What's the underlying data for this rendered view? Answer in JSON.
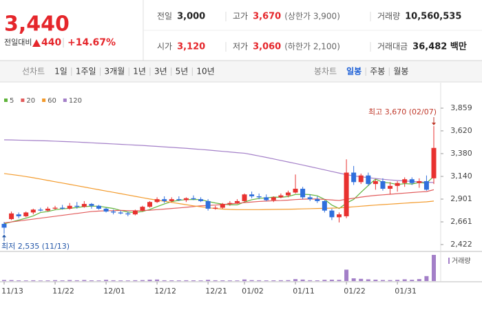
{
  "header": {
    "price": "3,440",
    "change_label": "전일대비",
    "change": "440",
    "change_rate": "+14.67%",
    "stats": [
      {
        "label": "전일",
        "value": "3,000"
      },
      {
        "label": "고가",
        "value": "3,670",
        "note": "(상한가 3,900)"
      },
      {
        "label": "거래량",
        "value": "10,560,535"
      },
      {
        "label": "시가",
        "value": "3,120"
      },
      {
        "label": "저가",
        "value": "3,060",
        "note": "(하한가 2,100)"
      },
      {
        "label": "거래대금",
        "value": "36,482 백만"
      }
    ]
  },
  "toolbar": {
    "line_chart": "선차트",
    "line_periods": [
      "1일",
      "1주일",
      "3개월",
      "1년",
      "3년",
      "5년",
      "10년"
    ],
    "candle_chart": "봉차트",
    "candle_periods": [
      "일봉",
      "주봉",
      "월봉"
    ],
    "selected": "일봉"
  },
  "chart_data": {
    "type": "candlestick",
    "up_color": "#e8312f",
    "down_color": "#2f6fdc",
    "categories": [
      "11/13",
      null,
      null,
      null,
      null,
      null,
      null,
      "11/22",
      null,
      null,
      null,
      null,
      null,
      null,
      "12/01",
      null,
      null,
      null,
      null,
      null,
      null,
      "12/12",
      null,
      null,
      null,
      null,
      null,
      null,
      "12/21",
      null,
      null,
      null,
      null,
      "01/02",
      null,
      null,
      null,
      null,
      null,
      null,
      "01/11",
      null,
      null,
      null,
      null,
      null,
      null,
      "01/22",
      null,
      null,
      null,
      null,
      null,
      null,
      "01/31",
      null,
      null,
      null,
      null,
      null
    ],
    "open": [
      2640,
      2690,
      2740,
      2720,
      2760,
      2790,
      2780,
      2800,
      2810,
      2800,
      2830,
      2820,
      2850,
      2830,
      2800,
      2770,
      2760,
      2750,
      2740,
      2780,
      2820,
      2870,
      2900,
      2880,
      2900,
      2890,
      2910,
      2900,
      2880,
      2800,
      2810,
      2850,
      2860,
      2880,
      2950,
      2930,
      2920,
      2890,
      2920,
      2940,
      2970,
      3010,
      2920,
      2900,
      2880,
      2780,
      2710,
      2720,
      3180,
      3080,
      3150,
      3060,
      3090,
      3010,
      3040,
      3070,
      3110,
      3070,
      3090,
      3120
    ],
    "high": [
      2660,
      2770,
      2760,
      2770,
      2800,
      2810,
      2820,
      2830,
      2840,
      2860,
      2870,
      2880,
      2860,
      2840,
      2810,
      2790,
      2780,
      2770,
      2790,
      2830,
      2880,
      2920,
      2930,
      2920,
      2930,
      2920,
      2940,
      2920,
      2900,
      2830,
      2860,
      2880,
      2900,
      2960,
      2980,
      2960,
      2950,
      2930,
      2960,
      2990,
      3160,
      3030,
      2950,
      2930,
      2890,
      2800,
      2760,
      3320,
      3250,
      3170,
      3180,
      3110,
      3120,
      3080,
      3090,
      3130,
      3130,
      3120,
      3150,
      3670
    ],
    "low": [
      2535,
      2680,
      2700,
      2710,
      2740,
      2770,
      2770,
      2790,
      2790,
      2790,
      2800,
      2810,
      2800,
      2790,
      2760,
      2740,
      2740,
      2720,
      2730,
      2770,
      2810,
      2860,
      2860,
      2870,
      2880,
      2870,
      2890,
      2870,
      2780,
      2790,
      2800,
      2830,
      2850,
      2870,
      2910,
      2900,
      2880,
      2870,
      2910,
      2920,
      2960,
      2900,
      2880,
      2860,
      2760,
      2680,
      2655,
      2700,
      3050,
      3060,
      3040,
      3000,
      2990,
      2950,
      2980,
      3030,
      3050,
      3020,
      2990,
      3060
    ],
    "close": [
      2600,
      2750,
      2720,
      2760,
      2790,
      2780,
      2800,
      2810,
      2800,
      2830,
      2820,
      2850,
      2830,
      2800,
      2770,
      2760,
      2750,
      2740,
      2780,
      2820,
      2870,
      2900,
      2880,
      2900,
      2890,
      2910,
      2900,
      2880,
      2800,
      2810,
      2850,
      2860,
      2880,
      2950,
      2930,
      2920,
      2890,
      2920,
      2940,
      2970,
      3010,
      2920,
      2900,
      2880,
      2780,
      2710,
      2740,
      3180,
      3080,
      3150,
      3060,
      3090,
      3010,
      3040,
      3070,
      3110,
      3070,
      3090,
      3000,
      3440
    ],
    "series": [
      {
        "name": "5",
        "color": "#5fb33a",
        "values": [
          2640,
          2660,
          2680,
          2700,
          2724,
          2760,
          2770,
          2788,
          2798,
          2804,
          2812,
          2822,
          2826,
          2826,
          2814,
          2802,
          2782,
          2764,
          2760,
          2770,
          2792,
          2822,
          2850,
          2874,
          2888,
          2896,
          2896,
          2896,
          2876,
          2860,
          2848,
          2840,
          2840,
          2870,
          2894,
          2908,
          2914,
          2922,
          2920,
          2928,
          2950,
          2952,
          2948,
          2936,
          2898,
          2838,
          2802,
          2858,
          2898,
          2972,
          3044,
          3112,
          3078,
          3070,
          3054,
          3064,
          3060,
          3076,
          3068,
          3142
        ]
      },
      {
        "name": "20",
        "color": "#e25b5b",
        "values": [
          2650,
          2660,
          2670,
          2680,
          2690,
          2700,
          2710,
          2720,
          2730,
          2740,
          2750,
          2760,
          2770,
          2775,
          2778,
          2780,
          2782,
          2780,
          2778,
          2780,
          2784,
          2790,
          2796,
          2802,
          2808,
          2815,
          2822,
          2830,
          2834,
          2838,
          2844,
          2850,
          2856,
          2864,
          2870,
          2876,
          2880,
          2884,
          2886,
          2890,
          2896,
          2900,
          2902,
          2902,
          2898,
          2892,
          2886,
          2900,
          2910,
          2922,
          2932,
          2940,
          2946,
          2952,
          2958,
          2964,
          2970,
          2976,
          2980,
          3000
        ]
      },
      {
        "name": "60",
        "color": "#f39a2b",
        "values": [
          3170,
          3160,
          3150,
          3138,
          3126,
          3112,
          3098,
          3084,
          3070,
          3056,
          3042,
          3028,
          3014,
          3000,
          2986,
          2972,
          2958,
          2944,
          2930,
          2916,
          2902,
          2890,
          2878,
          2866,
          2854,
          2842,
          2830,
          2820,
          2810,
          2802,
          2796,
          2792,
          2790,
          2790,
          2790,
          2790,
          2791,
          2792,
          2793,
          2794,
          2796,
          2798,
          2800,
          2802,
          2804,
          2806,
          2808,
          2814,
          2820,
          2826,
          2832,
          2838,
          2843,
          2848,
          2853,
          2858,
          2863,
          2868,
          2872,
          2880
        ]
      },
      {
        "name": "120",
        "color": "#a37fc8",
        "values": [
          3525,
          3524,
          3522,
          3520,
          3518,
          3516,
          3514,
          3511,
          3508,
          3505,
          3502,
          3498,
          3494,
          3490,
          3486,
          3482,
          3478,
          3474,
          3470,
          3466,
          3461,
          3456,
          3451,
          3446,
          3441,
          3436,
          3430,
          3424,
          3418,
          3411,
          3404,
          3397,
          3390,
          3384,
          3370,
          3355,
          3340,
          3324,
          3308,
          3292,
          3276,
          3260,
          3243,
          3226,
          3209,
          3192,
          3175,
          3158,
          3146,
          3136,
          3127,
          3118,
          3110,
          3103,
          3097,
          3092,
          3087,
          3083,
          3079,
          3075
        ]
      }
    ],
    "volume": {
      "name": "거래량",
      "color": "#a37fc8",
      "values": [
        420000,
        380000,
        260000,
        240000,
        300000,
        220000,
        250000,
        350000,
        260000,
        400000,
        300000,
        420000,
        280000,
        240000,
        500000,
        300000,
        260000,
        240000,
        320000,
        380000,
        560000,
        620000,
        300000,
        280000,
        260000,
        300000,
        280000,
        260000,
        500000,
        300000,
        280000,
        260000,
        240000,
        640000,
        360000,
        300000,
        260000,
        280000,
        320000,
        360000,
        780000,
        600000,
        320000,
        280000,
        500000,
        560000,
        480000,
        4600000,
        1100000,
        900000,
        700000,
        560000,
        420000,
        380000,
        480000,
        700000,
        520000,
        800000,
        2000000,
        10560535
      ]
    },
    "vlim": [
      0,
      10560535
    ],
    "ylim": [
      2422,
      3859
    ],
    "yticks": [
      {
        "value": 2422,
        "label": "2,422"
      },
      {
        "value": 2661,
        "label": "2,661"
      },
      {
        "value": 2901,
        "label": "2,901"
      },
      {
        "value": 3140,
        "label": "3,140"
      },
      {
        "value": 3380,
        "label": "3,380"
      },
      {
        "value": 3620,
        "label": "3,620"
      },
      {
        "value": 3859,
        "label": "3,859"
      }
    ],
    "annotations": {
      "high": "최고 3,670 (02/07)",
      "low": "최저 2,535 (11/13)"
    }
  }
}
